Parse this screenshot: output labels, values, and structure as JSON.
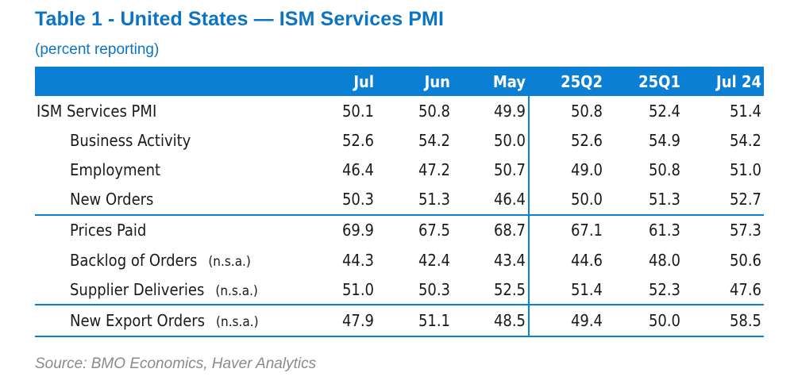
{
  "title": "Table 1 - United States — ISM Services PMI",
  "subtitle": "(percent reporting)",
  "source": "Source: BMO Economics, Haver Analytics",
  "columns": [
    "Jul",
    "Jun",
    "May",
    "25Q2",
    "25Q1",
    "Jul 24"
  ],
  "rows": [
    {
      "label": "ISM Services PMI",
      "note": "",
      "values": [
        "50.1",
        "50.8",
        "49.9",
        "50.8",
        "52.4",
        "51.4"
      ]
    },
    {
      "label": "Business Activity",
      "note": "",
      "values": [
        "52.6",
        "54.2",
        "50.0",
        "52.6",
        "54.9",
        "54.2"
      ]
    },
    {
      "label": "Employment",
      "note": "",
      "values": [
        "46.4",
        "47.2",
        "50.7",
        "49.0",
        "50.8",
        "51.0"
      ]
    },
    {
      "label": "New Orders",
      "note": "",
      "values": [
        "50.3",
        "51.3",
        "46.4",
        "50.0",
        "51.3",
        "52.7"
      ]
    },
    {
      "label": "Prices Paid",
      "note": "",
      "values": [
        "69.9",
        "67.5",
        "68.7",
        "67.1",
        "61.3",
        "57.3"
      ]
    },
    {
      "label": "Backlog of Orders",
      "note": "(n.s.a.)",
      "values": [
        "44.3",
        "42.4",
        "43.4",
        "44.6",
        "48.0",
        "50.6"
      ]
    },
    {
      "label": "Supplier Deliveries",
      "note": "(n.s.a.)",
      "values": [
        "51.0",
        "50.3",
        "52.5",
        "51.4",
        "52.3",
        "47.6"
      ]
    },
    {
      "label": "New Export Orders",
      "note": "(n.s.a.)",
      "values": [
        "47.9",
        "51.1",
        "48.5",
        "49.4",
        "50.0",
        "58.5"
      ]
    }
  ],
  "colors": {
    "accent": "#0b7fd4",
    "title": "#0b74c4",
    "source": "#8a8a8a"
  }
}
